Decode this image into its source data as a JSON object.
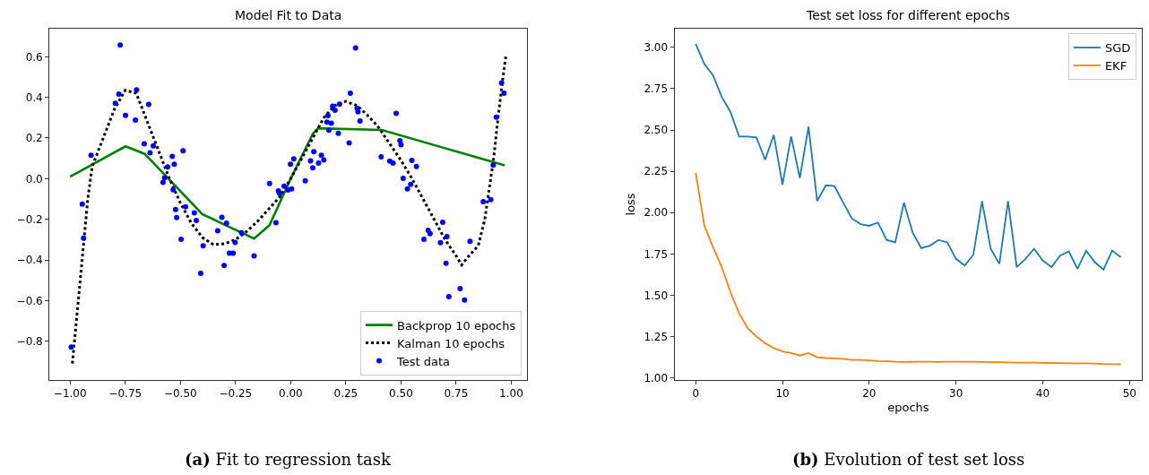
{
  "chart_data": [
    {
      "type": "line",
      "title": "Model Fit to Data",
      "legend": "bottom right",
      "xlim": [
        -1.094,
        1.073
      ],
      "ylim": [
        -0.991,
        0.739
      ],
      "xticks": [
        {
          "value": -1,
          "label": "−1.00"
        },
        {
          "value": -0.75,
          "label": "−0.75"
        },
        {
          "value": -0.5,
          "label": "−0.50"
        },
        {
          "value": -0.25,
          "label": "−0.25"
        },
        {
          "value": 0,
          "label": "0.00"
        },
        {
          "value": 0.25,
          "label": "0.25"
        },
        {
          "value": 0.5,
          "label": "0.50"
        },
        {
          "value": 0.75,
          "label": "0.75"
        },
        {
          "value": 1,
          "label": "1.00"
        }
      ],
      "yticks": [
        {
          "value": -0.8,
          "label": "−0.8"
        },
        {
          "value": -0.6,
          "label": "−0.6"
        },
        {
          "value": -0.4,
          "label": "−0.4"
        },
        {
          "value": -0.2,
          "label": "−0.2"
        },
        {
          "value": 0,
          "label": "0.0"
        },
        {
          "value": 0.2,
          "label": "0.2"
        },
        {
          "value": 0.4,
          "label": "0.4"
        },
        {
          "value": 0.6,
          "label": "0.6"
        }
      ],
      "annotations": [
        "(a) Fit to regression task"
      ],
      "series": [
        {
          "name": "Backprop 10 epochs",
          "type": "line",
          "color": "#008000",
          "line_style": "solid",
          "x": [
            -1.0,
            -0.749,
            -0.662,
            -0.401,
            -0.166,
            -0.096,
            0.0,
            0.1,
            0.123,
            0.413,
            0.97
          ],
          "values": [
            0.01,
            0.159,
            0.122,
            -0.175,
            -0.295,
            -0.229,
            0.0,
            0.22,
            0.248,
            0.24,
            0.065
          ]
        },
        {
          "name": "Kalman 10 epochs",
          "type": "line",
          "color": "#000000",
          "line_style": "dotted",
          "x": [
            -0.99,
            -0.95,
            -0.92,
            -0.9,
            -0.85,
            -0.8,
            -0.75,
            -0.7,
            -0.65,
            -0.6,
            -0.55,
            -0.5,
            -0.45,
            -0.4,
            -0.35,
            -0.3,
            -0.25,
            -0.2,
            -0.15,
            -0.1,
            -0.05,
            0.0,
            0.05,
            0.1,
            0.15,
            0.2,
            0.25,
            0.3,
            0.35,
            0.4,
            0.45,
            0.5,
            0.55,
            0.6,
            0.65,
            0.7,
            0.75,
            0.775,
            0.8,
            0.85,
            0.88,
            0.9,
            0.92,
            0.94,
            0.96,
            0.975
          ],
          "values": [
            -0.91,
            -0.45,
            -0.1,
            0.06,
            0.2,
            0.34,
            0.435,
            0.42,
            0.28,
            0.14,
            0.0,
            -0.12,
            -0.22,
            -0.29,
            -0.325,
            -0.32,
            -0.3,
            -0.26,
            -0.21,
            -0.15,
            -0.09,
            0.0,
            0.1,
            0.2,
            0.3,
            0.36,
            0.38,
            0.36,
            0.31,
            0.25,
            0.17,
            0.09,
            0.0,
            -0.1,
            -0.2,
            -0.3,
            -0.38,
            -0.425,
            -0.39,
            -0.33,
            -0.2,
            -0.05,
            0.1,
            0.3,
            0.48,
            0.6
          ]
        },
        {
          "name": "Test data",
          "type": "scatter",
          "color": "#0000ff",
          "marker": "circle",
          "x": [
            -0.995,
            -0.945,
            -0.939,
            -0.905,
            -0.795,
            -0.779,
            -0.773,
            -0.749,
            -0.704,
            -0.699,
            -0.664,
            -0.644,
            -0.638,
            -0.623,
            -0.579,
            -0.572,
            -0.558,
            -0.537,
            -0.533,
            -0.528,
            -0.522,
            -0.517,
            -0.497,
            -0.488,
            -0.477,
            -0.437,
            -0.428,
            -0.408,
            -0.397,
            -0.331,
            -0.312,
            -0.302,
            -0.291,
            -0.278,
            -0.261,
            -0.252,
            -0.223,
            -0.166,
            -0.096,
            -0.067,
            -0.056,
            -0.05,
            -0.03,
            -0.012,
            -0.001,
            0.004,
            0.014,
            0.066,
            0.09,
            0.1,
            0.105,
            0.126,
            0.139,
            0.15,
            0.164,
            0.169,
            0.173,
            0.184,
            0.19,
            0.201,
            0.216,
            0.221,
            0.265,
            0.27,
            0.294,
            0.301,
            0.305,
            0.314,
            0.41,
            0.449,
            0.464,
            0.478,
            0.495,
            0.5,
            0.51,
            0.529,
            0.544,
            0.549,
            0.57,
            0.604,
            0.623,
            0.632,
            0.679,
            0.689,
            0.708,
            0.704,
            0.717,
            0.768,
            0.788,
            0.813,
            0.873,
            0.907,
            0.918,
            0.932,
            0.956,
            0.967
          ],
          "values": [
            -0.829,
            -0.125,
            -0.293,
            0.115,
            0.371,
            0.416,
            0.658,
            0.311,
            0.288,
            0.437,
            0.171,
            0.365,
            0.127,
            0.161,
            -0.018,
            0.004,
            0.058,
            0.109,
            -0.055,
            0.071,
            -0.152,
            -0.191,
            -0.299,
            0.137,
            -0.139,
            -0.168,
            -0.206,
            -0.466,
            -0.331,
            -0.257,
            -0.19,
            -0.427,
            -0.219,
            -0.367,
            -0.367,
            -0.314,
            -0.267,
            -0.38,
            -0.024,
            -0.217,
            -0.06,
            -0.074,
            -0.037,
            -0.056,
            0.071,
            -0.05,
            0.097,
            -0.011,
            0.087,
            0.053,
            0.133,
            0.076,
            0.115,
            0.092,
            0.278,
            0.31,
            0.239,
            0.273,
            0.357,
            0.337,
            0.223,
            0.366,
            0.176,
            0.42,
            0.643,
            0.347,
            0.329,
            0.284,
            0.107,
            0.086,
            0.076,
            0.321,
            0.187,
            0.167,
            0.002,
            -0.05,
            -0.028,
            0.09,
            0.06,
            -0.299,
            -0.254,
            -0.271,
            -0.315,
            -0.215,
            -0.285,
            -0.417,
            -0.581,
            -0.541,
            -0.597,
            -0.308,
            -0.113,
            -0.103,
            0.067,
            0.302,
            0.471,
            0.42
          ]
        }
      ]
    },
    {
      "type": "line",
      "title": "Test set loss for different epochs",
      "xlabel": "epochs",
      "ylabel": "loss",
      "legend": "top right",
      "xlim": [
        -2.45,
        51.45
      ],
      "ylim": [
        0.987,
        3.114
      ],
      "xticks": [
        0,
        10,
        20,
        30,
        40,
        50
      ],
      "yticks": [
        {
          "value": 1,
          "label": "1.00"
        },
        {
          "value": 1.25,
          "label": "1.25"
        },
        {
          "value": 1.5,
          "label": "1.50"
        },
        {
          "value": 1.75,
          "label": "1.75"
        },
        {
          "value": 2,
          "label": "2.00"
        },
        {
          "value": 2.25,
          "label": "2.25"
        },
        {
          "value": 2.5,
          "label": "2.50"
        },
        {
          "value": 2.75,
          "label": "2.75"
        },
        {
          "value": 3,
          "label": "3.00"
        }
      ],
      "annotations": [
        "(b) Evolution of test set loss"
      ],
      "x": [
        0,
        1,
        2,
        3,
        4,
        5,
        6,
        7,
        8,
        9,
        10,
        11,
        12,
        13,
        14,
        15,
        16,
        17,
        18,
        19,
        20,
        21,
        22,
        23,
        24,
        25,
        26,
        27,
        28,
        29,
        30,
        31,
        32,
        33,
        34,
        35,
        36,
        37,
        38,
        39,
        40,
        41,
        42,
        43,
        44,
        45,
        46,
        47,
        48,
        49
      ],
      "series": [
        {
          "name": "SGD",
          "color": "#1f77b4",
          "values": [
            3.02,
            2.9,
            2.83,
            2.7,
            2.61,
            2.46,
            2.46,
            2.455,
            2.32,
            2.47,
            2.17,
            2.46,
            2.21,
            2.52,
            2.07,
            2.165,
            2.16,
            2.06,
            1.965,
            1.93,
            1.92,
            1.94,
            1.835,
            1.82,
            2.06,
            1.88,
            1.785,
            1.8,
            1.835,
            1.82,
            1.72,
            1.68,
            1.745,
            2.07,
            1.78,
            1.69,
            2.07,
            1.67,
            1.72,
            1.78,
            1.71,
            1.67,
            1.74,
            1.765,
            1.66,
            1.77,
            1.7,
            1.655,
            1.77,
            1.73
          ]
        },
        {
          "name": "EKF",
          "color": "#ff7f0e",
          "values": [
            2.24,
            1.92,
            1.79,
            1.67,
            1.52,
            1.39,
            1.3,
            1.25,
            1.21,
            1.18,
            1.16,
            1.15,
            1.135,
            1.15,
            1.125,
            1.12,
            1.118,
            1.115,
            1.108,
            1.108,
            1.106,
            1.102,
            1.1,
            1.097,
            1.096,
            1.097,
            1.097,
            1.097,
            1.096,
            1.097,
            1.097,
            1.097,
            1.097,
            1.096,
            1.095,
            1.095,
            1.093,
            1.092,
            1.092,
            1.092,
            1.091,
            1.09,
            1.089,
            1.088,
            1.088,
            1.088,
            1.087,
            1.084,
            1.083,
            1.083
          ]
        }
      ]
    }
  ]
}
